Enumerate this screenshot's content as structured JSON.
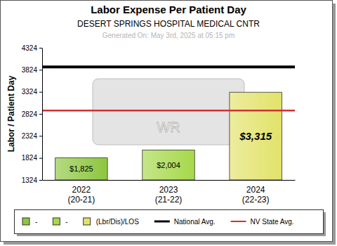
{
  "chart_data": {
    "type": "bar",
    "title": "Labor Expense Per Patient Day",
    "subtitle": "DESERT SPRINGS HOSPITAL MEDICAL CNTR",
    "annotations": [
      "Generated On: May 3rd, 2025 at 05:15 pm",
      "WR"
    ],
    "y_label": "Labor / Patient Day",
    "categories": [
      "2022 (20-21)",
      "2023 (21-22)",
      "2024 (22-23)"
    ],
    "series": [
      {
        "name": "-",
        "color": "#8dc63f",
        "values": [
          1825,
          null,
          null
        ],
        "value_labels": [
          "$1,825",
          null,
          null
        ]
      },
      {
        "name": "-",
        "color": "#a6d84a",
        "values": [
          null,
          2004,
          null
        ],
        "value_labels": [
          null,
          "$2,004",
          null
        ]
      },
      {
        "name": "(Lbr/Dis)/LOS",
        "color": "#e2e26a",
        "values": [
          null,
          null,
          3315
        ],
        "value_labels": [
          null,
          null,
          "$3,315"
        ]
      },
      {
        "name": "National Avg.",
        "type": "line",
        "color": "#000000",
        "values": [
          3890,
          3890,
          3890
        ]
      },
      {
        "name": "NV State Avg.",
        "type": "line",
        "color": "#cc3333",
        "values": [
          2900,
          2900,
          2900
        ]
      }
    ],
    "ylim": [
      1324,
      4324
    ],
    "yticks": [
      1324,
      1824,
      2324,
      2824,
      3324,
      3824,
      4324
    ],
    "data_labels": true,
    "legend": "bottom",
    "grid": false
  }
}
